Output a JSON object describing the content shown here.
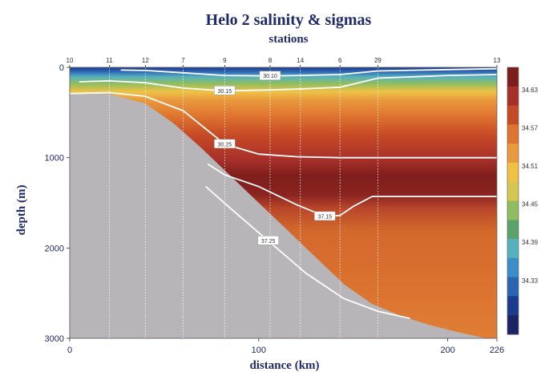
{
  "chart_data": {
    "type": "heatmap",
    "title": "Helo 2 salinity & sigmas",
    "subtitle": "stations",
    "xlabel": "distance (km)",
    "ylabel": "depth (m)",
    "xlim": [
      0,
      226
    ],
    "ylim": [
      3000,
      0
    ],
    "x_ticks": [
      {
        "value": 0,
        "label": "0"
      },
      {
        "value": 100,
        "label": "100"
      },
      {
        "value": 200,
        "label": "200"
      },
      {
        "value": 226,
        "label": "226"
      }
    ],
    "y_ticks": [
      {
        "value": 0,
        "label": "0"
      },
      {
        "value": 1000,
        "label": "1000"
      },
      {
        "value": 2000,
        "label": "2000"
      },
      {
        "value": 3000,
        "label": "3000"
      }
    ],
    "stations": [
      {
        "label": "10",
        "x": 0
      },
      {
        "label": "11",
        "x": 21
      },
      {
        "label": "12",
        "x": 40
      },
      {
        "label": "7",
        "x": 60
      },
      {
        "label": "9",
        "x": 82
      },
      {
        "label": "8",
        "x": 106
      },
      {
        "label": "14",
        "x": 122
      },
      {
        "label": "6",
        "x": 143
      },
      {
        "label": "29",
        "x": 163
      },
      {
        "label": "13",
        "x": 226
      }
    ],
    "colorbar": {
      "ticks": [
        "34.63",
        "34.57",
        "34.51",
        "34.45",
        "34.39",
        "34.33"
      ],
      "colors": [
        "#7e1e1c",
        "#a8302a",
        "#c64a25",
        "#df7430",
        "#e99a3c",
        "#efc246",
        "#d4c64e",
        "#8fbd5f",
        "#5aa46b",
        "#56b1bd",
        "#3b8ec7",
        "#2c64b4",
        "#1e3a8c",
        "#1c2466"
      ]
    },
    "contours": [
      {
        "label": "30.10",
        "x": [
          27,
          40,
          60,
          82,
          106,
          122,
          143,
          163,
          200,
          226
        ],
        "depth": [
          30,
          35,
          60,
          90,
          95,
          90,
          80,
          40,
          25,
          15
        ]
      },
      {
        "label": "30.15",
        "x": [
          5,
          21,
          40,
          60,
          82,
          106,
          122,
          143,
          163,
          200,
          226
        ],
        "depth": [
          160,
          150,
          170,
          230,
          260,
          250,
          240,
          220,
          120,
          90,
          80
        ]
      },
      {
        "label": "30.25",
        "x": [
          0,
          21,
          40,
          60,
          82,
          100,
          120,
          143,
          163,
          200,
          226
        ],
        "depth": [
          290,
          280,
          320,
          480,
          850,
          960,
          990,
          1000,
          1000,
          1000,
          1000
        ]
      },
      {
        "label": "37.15",
        "x": [
          73,
          82,
          100,
          120,
          135,
          143,
          150,
          160,
          180,
          200,
          226
        ],
        "depth": [
          1070,
          1190,
          1320,
          1520,
          1650,
          1640,
          1540,
          1430,
          1430,
          1430,
          1430
        ]
      },
      {
        "label": "37.25",
        "x": [
          72,
          85,
          105,
          125,
          145,
          163,
          180
        ],
        "depth": [
          1320,
          1560,
          1920,
          2280,
          2560,
          2700,
          2780
        ]
      }
    ],
    "bathymetry": {
      "x": [
        0,
        20,
        40,
        55,
        70,
        85,
        100,
        115,
        130,
        145,
        160,
        175,
        190,
        205,
        218,
        226
      ],
      "depth": [
        300,
        290,
        400,
        620,
        900,
        1200,
        1500,
        1800,
        2100,
        2400,
        2620,
        2750,
        2850,
        2930,
        2990,
        3020
      ]
    }
  }
}
